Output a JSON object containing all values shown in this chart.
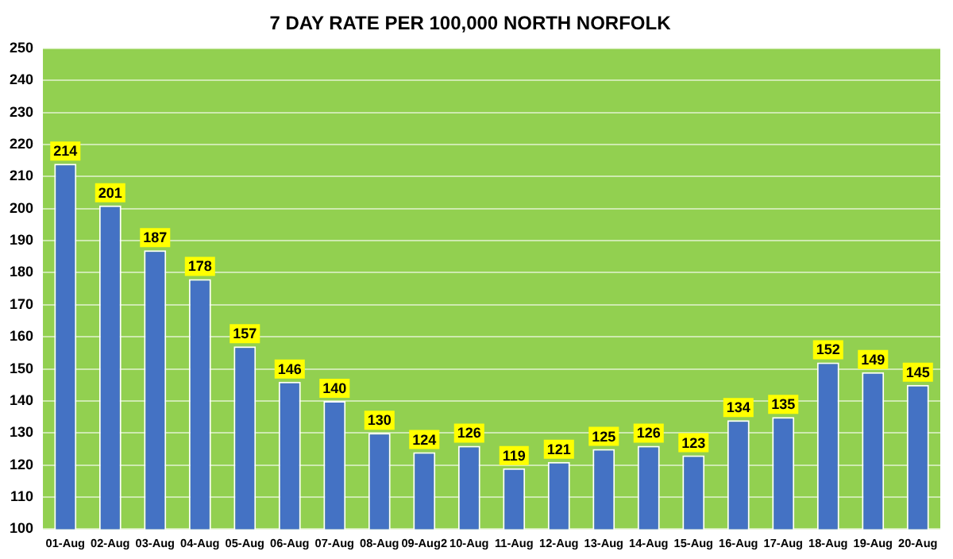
{
  "chart_data": {
    "type": "bar",
    "title": "7 DAY RATE PER 100,000 NORTH NORFOLK",
    "categories": [
      "01-Aug",
      "02-Aug",
      "03-Aug",
      "04-Aug",
      "05-Aug",
      "06-Aug",
      "07-Aug",
      "08-Aug",
      "09-Aug2",
      "10-Aug",
      "11-Aug",
      "12-Aug",
      "13-Aug",
      "14-Aug",
      "15-Aug",
      "16-Aug",
      "17-Aug",
      "18-Aug",
      "19-Aug",
      "20-Aug"
    ],
    "values": [
      214,
      201,
      187,
      178,
      157,
      146,
      140,
      130,
      124,
      126,
      119,
      121,
      125,
      126,
      123,
      134,
      135,
      152,
      149,
      145
    ],
    "color": "#4472c4",
    "data_labels": true,
    "grid": "y",
    "ylim": [
      100,
      250
    ],
    "yticks": [
      100,
      110,
      120,
      130,
      140,
      150,
      160,
      170,
      180,
      190,
      200,
      210,
      220,
      230,
      240,
      250
    ]
  }
}
